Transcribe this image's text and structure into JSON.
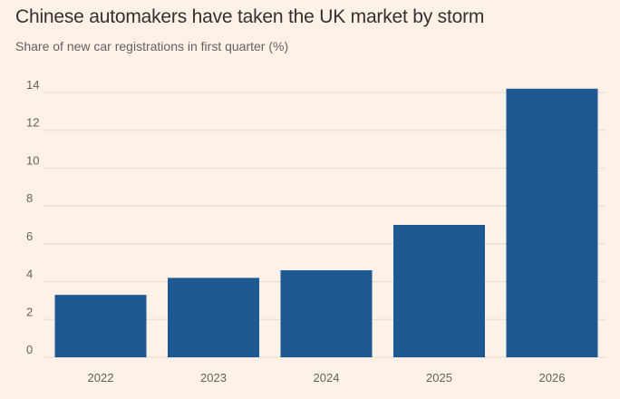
{
  "chart_data": {
    "type": "bar",
    "title": "Chinese automakers have taken the UK market by storm",
    "subtitle": "Share of new car registrations in first quarter (%)",
    "xlabel": "",
    "ylabel": "",
    "categories": [
      "2022",
      "2023",
      "2024",
      "2025",
      "2026"
    ],
    "values": [
      3.3,
      4.2,
      4.6,
      7.0,
      14.2
    ],
    "ylim": [
      0,
      14
    ],
    "yticks": [
      0,
      2,
      4,
      6,
      8,
      10,
      12,
      14
    ],
    "grid": true,
    "bar_color": "#1f5994",
    "background_color": "#fdf1e8"
  }
}
